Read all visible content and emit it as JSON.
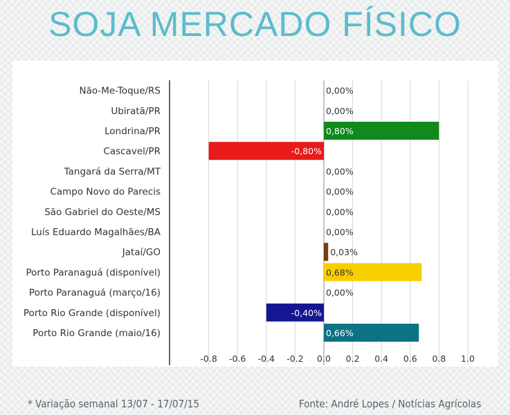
{
  "title": "SOJA MERCADO FÍSICO",
  "footnote": "* Variação semanal 13/07 - 17/07/15",
  "source": "Fonte: André Lopes / Notícias Agrícolas",
  "chart_data": {
    "type": "bar",
    "orientation": "horizontal",
    "categories": [
      "Não-Me-Toque/RS",
      "Ubiratã/PR",
      "Londrina/PR",
      "Cascavel/PR",
      "Tangará da Serra/MT",
      "Campo Novo do Parecis",
      "São Gabriel do Oeste/MS",
      "Luís Eduardo Magalhães/BA",
      "Jataí/GO",
      "Porto Paranaguá (disponível)",
      "Porto Paranaguá (março/16)",
      "Porto Rio Grande (disponível)",
      "Porto Rio Grande (maio/16)"
    ],
    "values": [
      0,
      0,
      0.8,
      -0.8,
      0,
      0,
      0,
      0,
      0.03,
      0.68,
      0,
      -0.4,
      0.66
    ],
    "value_labels": [
      "0,00%",
      "0,00%",
      "0,80%",
      "-0,80%",
      "0,00%",
      "0,00%",
      "0,00%",
      "0,00%",
      "0,03%",
      "0,68%",
      "0,00%",
      "-0,40%",
      "0,66%"
    ],
    "colors": [
      "",
      "",
      "#108a1c",
      "#e81b1b",
      "",
      "",
      "",
      "",
      "#7a3b0a",
      "#f7cf00",
      "",
      "#161693",
      "#0d7384"
    ],
    "xticks": [
      -0.8,
      -0.6,
      -0.4,
      -0.2,
      0.0,
      0.2,
      0.4,
      0.6,
      0.8,
      1.0
    ],
    "xtick_labels": [
      "-0.8",
      "-0.6",
      "-0.4",
      "-0.2",
      "0.0",
      "0.2",
      "0.4",
      "0.6",
      "0.8",
      "1.0"
    ],
    "xlim": [
      -1.0,
      1.0
    ],
    "grid": true
  }
}
